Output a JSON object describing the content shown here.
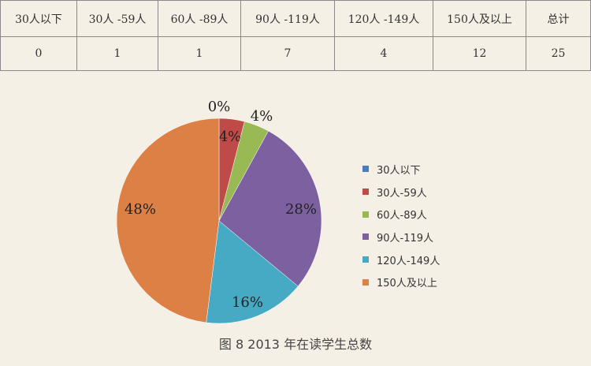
{
  "table": {
    "headers": [
      "30人以下",
      "30人 -59人",
      "60人 -89人",
      "90人 -119人",
      "120人 -149人",
      "150人及以上",
      "总计"
    ],
    "values": [
      "0",
      "1",
      "1",
      "7",
      "4",
      "12",
      "25"
    ]
  },
  "chart_data": {
    "type": "pie",
    "categories": [
      "30人以下",
      "30人-59人",
      "60人-89人",
      "90人-119人",
      "120人-149人",
      "150人及以上"
    ],
    "values": [
      0,
      1,
      1,
      7,
      4,
      12
    ],
    "percent_labels": [
      "0%",
      "4%",
      "4%",
      "28%",
      "16%",
      "48%"
    ],
    "colors": [
      "#4a7ebb",
      "#be4b48",
      "#98b954",
      "#7d60a0",
      "#46aac4",
      "#dd8045"
    ],
    "legend": "right",
    "title": ""
  },
  "caption": "图 8    2013 年在读学生总数"
}
